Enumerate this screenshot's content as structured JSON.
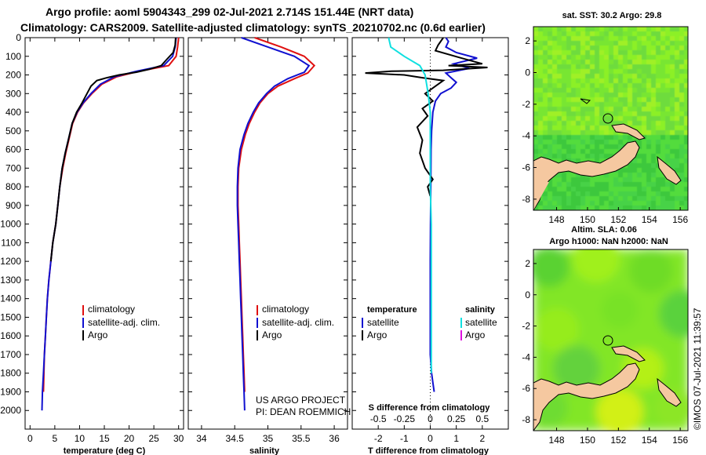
{
  "header": {
    "title_line1": "Argo profile: aoml 5904343_299 02-Jul-2021 2.714S 151.44E (NRT data)",
    "title_line2": "Climatology: CARS2009. Satellite-adjusted climatology: synTS_20210702.nc (0.6d earlier)"
  },
  "colors": {
    "argo": "#000000",
    "climatology": "#e01010",
    "satellite": "#1010d0",
    "salinity_satellite": "#10e0e0",
    "salinity_argo": "#e010e0",
    "land": "#f5c8a0"
  },
  "credits": {
    "project": "US ARGO PROJECT",
    "pi": "PI: DEAN ROEMMICH",
    "imos": "©IMOS 07-Jul-2021 11:39:57"
  },
  "chart_data": [
    {
      "type": "line",
      "name": "temperature-profile",
      "xlabel": "temperature (deg C)",
      "ylabel": "",
      "xlim": [
        -1,
        31
      ],
      "ylim": [
        0,
        2100
      ],
      "y_inverted": true,
      "xticks": [
        0,
        5,
        10,
        15,
        20,
        25,
        30
      ],
      "yticks": [
        0,
        100,
        200,
        300,
        400,
        500,
        600,
        700,
        800,
        900,
        1000,
        1100,
        1200,
        1300,
        1400,
        1500,
        1600,
        1700,
        1800,
        1900,
        2000
      ],
      "legend": [
        "climatology",
        "satellite-adj. clim.",
        "Argo"
      ],
      "series": [
        {
          "name": "climatology",
          "color": "#e01010",
          "points": [
            [
              30,
              0
            ],
            [
              29.8,
              50
            ],
            [
              29.5,
              100
            ],
            [
              28,
              150
            ],
            [
              22,
              180
            ],
            [
              17.5,
              210
            ],
            [
              14.5,
              250
            ],
            [
              12.5,
              300
            ],
            [
              10.8,
              350
            ],
            [
              9.6,
              400
            ],
            [
              8.6,
              460
            ],
            [
              7.9,
              540
            ],
            [
              7.2,
              620
            ],
            [
              6.6,
              700
            ],
            [
              6.0,
              800
            ],
            [
              5.6,
              900
            ],
            [
              5.2,
              1000
            ],
            [
              4.6,
              1100
            ],
            [
              4.2,
              1200
            ],
            [
              3.8,
              1300
            ],
            [
              3.5,
              1400
            ],
            [
              3.3,
              1500
            ],
            [
              3.1,
              1600
            ],
            [
              2.9,
              1700
            ],
            [
              2.8,
              1800
            ],
            [
              2.7,
              1900
            ]
          ]
        },
        {
          "name": "satellite-adj. clim.",
          "color": "#1010d0",
          "points": [
            [
              29.5,
              0
            ],
            [
              29.3,
              50
            ],
            [
              28.8,
              100
            ],
            [
              27,
              150
            ],
            [
              21.5,
              180
            ],
            [
              17,
              210
            ],
            [
              14.2,
              250
            ],
            [
              12.3,
              300
            ],
            [
              10.7,
              350
            ],
            [
              9.5,
              400
            ],
            [
              8.5,
              460
            ],
            [
              7.8,
              540
            ],
            [
              7.1,
              620
            ],
            [
              6.5,
              700
            ],
            [
              6.0,
              800
            ],
            [
              5.6,
              900
            ],
            [
              5.2,
              1000
            ],
            [
              4.6,
              1100
            ],
            [
              4.2,
              1200
            ],
            [
              3.8,
              1300
            ],
            [
              3.5,
              1400
            ],
            [
              3.3,
              1500
            ],
            [
              3.1,
              1600
            ],
            [
              2.9,
              1700
            ],
            [
              2.7,
              1800
            ],
            [
              2.5,
              1900
            ],
            [
              2.4,
              2000
            ]
          ]
        },
        {
          "name": "Argo",
          "color": "#000000",
          "points": [
            [
              29.4,
              0
            ],
            [
              29.3,
              40
            ],
            [
              28.9,
              80
            ],
            [
              27.5,
              120
            ],
            [
              26.5,
              150
            ],
            [
              24,
              170
            ],
            [
              21.5,
              185
            ],
            [
              18,
              200
            ],
            [
              15.5,
              215
            ],
            [
              13.5,
              230
            ],
            [
              12.3,
              260
            ],
            [
              11.5,
              300
            ],
            [
              10.5,
              350
            ],
            [
              9.4,
              400
            ],
            [
              8.5,
              460
            ],
            [
              7.8,
              540
            ],
            [
              7.1,
              620
            ],
            [
              6.5,
              700
            ],
            [
              6.0,
              800
            ],
            [
              5.6,
              900
            ],
            [
              5.2,
              1000
            ],
            [
              4.6,
              1100
            ],
            [
              4.2,
              1200
            ]
          ]
        }
      ]
    },
    {
      "type": "line",
      "name": "salinity-profile",
      "xlabel": "salinity",
      "xlim": [
        33.8,
        36.2
      ],
      "ylim": [
        0,
        2100
      ],
      "y_inverted": true,
      "xticks": [
        34,
        34.5,
        35,
        35.5,
        36
      ],
      "legend": [
        "climatology",
        "satellite-adj. clim.",
        "Argo"
      ],
      "series": [
        {
          "name": "climatology",
          "color": "#e01010",
          "points": [
            [
              34.8,
              0
            ],
            [
              35.2,
              50
            ],
            [
              35.55,
              100
            ],
            [
              35.7,
              150
            ],
            [
              35.6,
              190
            ],
            [
              35.4,
              220
            ],
            [
              35.15,
              260
            ],
            [
              35.0,
              300
            ],
            [
              34.88,
              350
            ],
            [
              34.8,
              400
            ],
            [
              34.72,
              460
            ],
            [
              34.66,
              520
            ],
            [
              34.6,
              600
            ],
            [
              34.56,
              700
            ],
            [
              34.55,
              800
            ],
            [
              34.55,
              900
            ],
            [
              34.56,
              1000
            ],
            [
              34.57,
              1100
            ],
            [
              34.58,
              1200
            ],
            [
              34.59,
              1300
            ],
            [
              34.6,
              1400
            ],
            [
              34.61,
              1500
            ],
            [
              34.62,
              1600
            ],
            [
              34.63,
              1700
            ],
            [
              34.64,
              1800
            ],
            [
              34.65,
              1900
            ]
          ]
        },
        {
          "name": "satellite-adj. clim.",
          "color": "#1010d0",
          "points": [
            [
              34.6,
              0
            ],
            [
              35.0,
              50
            ],
            [
              35.4,
              100
            ],
            [
              35.62,
              150
            ],
            [
              35.55,
              185
            ],
            [
              35.3,
              220
            ],
            [
              35.1,
              260
            ],
            [
              34.98,
              300
            ],
            [
              34.86,
              350
            ],
            [
              34.78,
              400
            ],
            [
              34.7,
              460
            ],
            [
              34.64,
              520
            ],
            [
              34.58,
              600
            ],
            [
              34.55,
              700
            ],
            [
              34.54,
              800
            ],
            [
              34.54,
              900
            ],
            [
              34.55,
              1000
            ],
            [
              34.56,
              1100
            ],
            [
              34.57,
              1200
            ],
            [
              34.58,
              1300
            ],
            [
              34.59,
              1400
            ],
            [
              34.6,
              1500
            ],
            [
              34.61,
              1600
            ],
            [
              34.62,
              1700
            ],
            [
              34.63,
              1800
            ],
            [
              34.64,
              1900
            ],
            [
              34.65,
              2000
            ]
          ]
        }
      ]
    },
    {
      "type": "line",
      "name": "difference-profile",
      "xlabel": "T difference from climatology",
      "xlabel_top": "S difference from climatology",
      "xlim": [
        -3,
        3
      ],
      "ylim": [
        0,
        2100
      ],
      "y_inverted": true,
      "xticks": [
        -2,
        -1,
        0,
        1,
        2
      ],
      "xticks_top": [
        -0.5,
        -0.25,
        0,
        0.25,
        0.5
      ],
      "legend_left_title": "temperature",
      "legend_right_title": "salinity",
      "legend_left": [
        "satellite",
        "Argo"
      ],
      "legend_right": [
        "satellite",
        "Argo"
      ],
      "series": [
        {
          "name": "T satellite",
          "color": "#1010d0",
          "points": [
            [
              0.6,
              0
            ],
            [
              0.7,
              20
            ],
            [
              0.6,
              50
            ],
            [
              1.0,
              80
            ],
            [
              1.8,
              110
            ],
            [
              0.9,
              140
            ],
            [
              1.5,
              165
            ],
            [
              0.6,
              190
            ],
            [
              0.8,
              215
            ],
            [
              1.0,
              240
            ],
            [
              0.8,
              270
            ],
            [
              0.4,
              300
            ],
            [
              0.2,
              340
            ],
            [
              0.1,
              400
            ],
            [
              0.05,
              500
            ],
            [
              0.03,
              600
            ],
            [
              0.02,
              800
            ],
            [
              0.01,
              1000
            ],
            [
              0.0,
              1200
            ],
            [
              0.0,
              1500
            ],
            [
              0.0,
              1700
            ],
            [
              0.05,
              1800
            ],
            [
              0.1,
              1850
            ],
            [
              0.15,
              1900
            ]
          ]
        },
        {
          "name": "T Argo",
          "color": "#000000",
          "points": [
            [
              0.5,
              0
            ],
            [
              0.3,
              40
            ],
            [
              0.2,
              70
            ],
            [
              1.2,
              110
            ],
            [
              2.0,
              140
            ],
            [
              0.7,
              150
            ],
            [
              2.2,
              160
            ],
            [
              0.5,
              175
            ],
            [
              -1.5,
              180
            ],
            [
              -2.5,
              190
            ],
            [
              -1.0,
              200
            ],
            [
              -0.3,
              215
            ],
            [
              0.5,
              230
            ],
            [
              0.2,
              260
            ],
            [
              -0.2,
              300
            ],
            [
              0.1,
              340
            ],
            [
              -0.3,
              380
            ],
            [
              -0.1,
              420
            ],
            [
              -0.5,
              480
            ],
            [
              -0.3,
              550
            ],
            [
              -0.4,
              620
            ],
            [
              -0.2,
              700
            ],
            [
              0.1,
              760
            ],
            [
              -0.1,
              800
            ],
            [
              0.0,
              850
            ]
          ]
        },
        {
          "name": "S satellite",
          "color": "#10e0e0",
          "points": [
            [
              -0.4,
              0
            ],
            [
              -0.38,
              50
            ],
            [
              -0.25,
              100
            ],
            [
              -0.1,
              150
            ],
            [
              -0.05,
              200
            ],
            [
              -0.02,
              300
            ],
            [
              0.0,
              400
            ],
            [
              0.0,
              600
            ],
            [
              0.0,
              800
            ],
            [
              0.01,
              1000
            ],
            [
              0.01,
              1200
            ],
            [
              0.01,
              1400
            ],
            [
              0.01,
              1600
            ],
            [
              0.01,
              1800
            ]
          ]
        }
      ]
    },
    {
      "type": "heatmap",
      "name": "sst-map",
      "title": "sat. SST: 30.2 Argo: 29.8",
      "xlim": [
        146.5,
        156.5
      ],
      "ylim": [
        -8.7,
        2.9
      ],
      "xticks": [
        148,
        150,
        152,
        154,
        156
      ],
      "yticks": [
        2,
        0,
        -2,
        -4,
        -6,
        -8
      ]
    },
    {
      "type": "heatmap",
      "name": "sla-map",
      "title_line1": "Altim. SLA: 0.06",
      "title_line2": "Argo h1000: NaN h2000: NaN",
      "xlim": [
        146.5,
        156.5
      ],
      "ylim": [
        -8.7,
        2.9
      ],
      "xticks": [
        148,
        150,
        152,
        154,
        156
      ],
      "yticks": [
        2,
        0,
        -2,
        -4,
        -6,
        -8
      ]
    }
  ]
}
